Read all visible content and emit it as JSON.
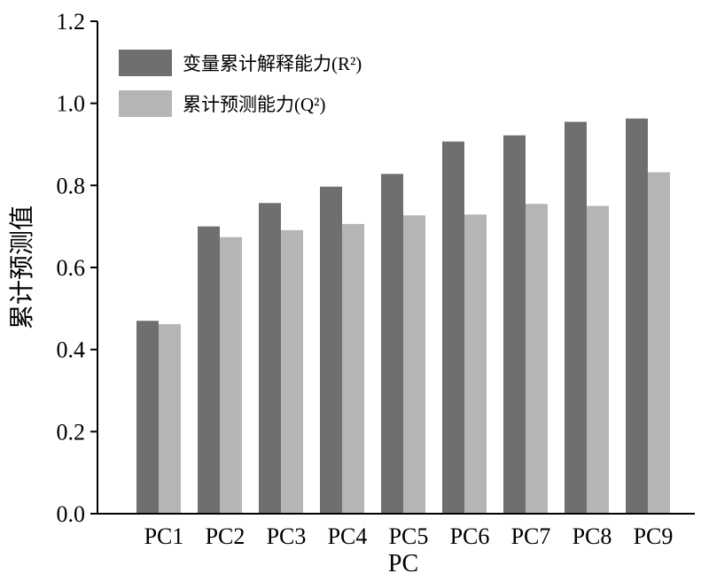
{
  "chart_data": {
    "type": "bar",
    "categories": [
      "PC1",
      "PC2",
      "PC3",
      "PC4",
      "PC5",
      "PC6",
      "PC7",
      "PC8",
      "PC9"
    ],
    "series": [
      {
        "name": "变量累计解释能力(R²)",
        "color": "#6e7070",
        "values": [
          0.47,
          0.7,
          0.757,
          0.797,
          0.828,
          0.907,
          0.922,
          0.955,
          0.963
        ]
      },
      {
        "name": "累计预测能力(Q²)",
        "color": "#b4b5b5",
        "values": [
          0.462,
          0.674,
          0.691,
          0.706,
          0.727,
          0.729,
          0.755,
          0.75,
          0.832
        ]
      }
    ],
    "title": "",
    "xlabel": "PC",
    "ylabel": "累计预测值",
    "ylim": [
      0,
      1.2
    ],
    "yticks": [
      "0.0",
      "0.2",
      "0.4",
      "0.6",
      "0.8",
      "1.0",
      "1.2"
    ],
    "legend_position": "top-left",
    "grid": false
  }
}
